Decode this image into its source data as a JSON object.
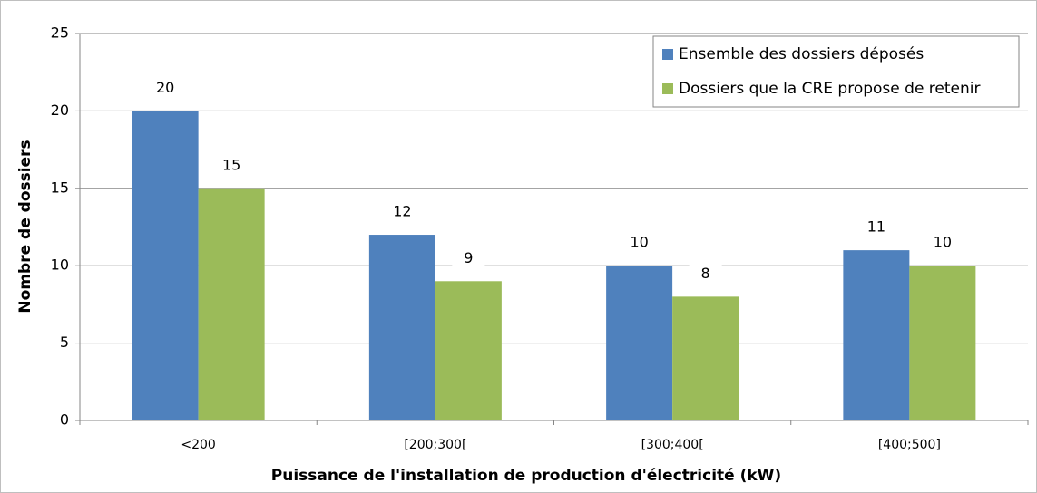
{
  "chart_data": {
    "type": "bar",
    "categories": [
      "<200",
      "[200;300[",
      "[300;400[",
      "[400;500]"
    ],
    "series": [
      {
        "name": "Ensemble des dossiers déposés",
        "color": "#4f81bd",
        "values": [
          20,
          12,
          10,
          11
        ]
      },
      {
        "name": "Dossiers que la CRE propose de retenir",
        "color": "#9bbb59",
        "values": [
          15,
          9,
          8,
          10
        ]
      }
    ],
    "xlabel": "Puissance de l'installation de production d'électricité (kW)",
    "ylabel": "Nombre de dossiers",
    "ylim": [
      0,
      25
    ],
    "yticks": [
      0,
      5,
      10,
      15,
      20,
      25
    ],
    "grid": true,
    "legend": "top-right",
    "data_labels": true
  }
}
